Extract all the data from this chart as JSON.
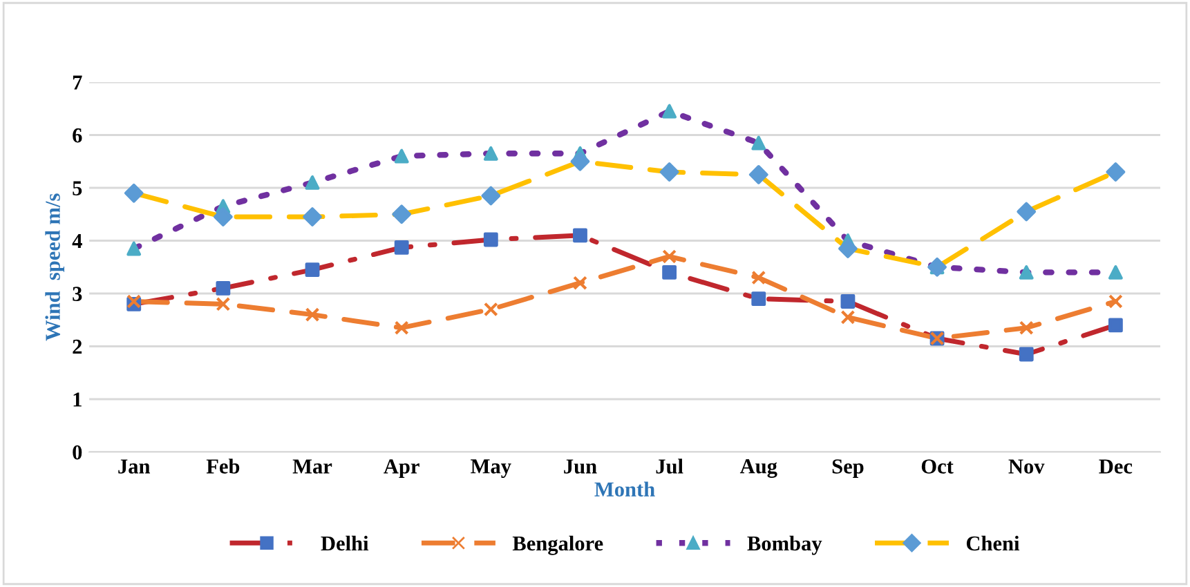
{
  "chart_data": {
    "type": "line",
    "xlabel": "Month",
    "ylabel": "Wind  speed m/s",
    "categories": [
      "Jan",
      "Feb",
      "Mar",
      "Apr",
      "May",
      "Jun",
      "Jul",
      "Aug",
      "Sep",
      "Oct",
      "Nov",
      "Dec"
    ],
    "ylim": [
      0,
      7
    ],
    "yticks": [
      0,
      1,
      2,
      3,
      4,
      5,
      6,
      7
    ],
    "grid": "y",
    "legend": "bottom",
    "series": [
      {
        "name": "Delhi",
        "color": "#c0272d",
        "marker": "square",
        "colors": [
          "#4472c4",
          "#4472c4",
          "#4472c4",
          "#4472c4",
          "#4472c4",
          "#4472c4",
          "#4472c4",
          "#4472c4",
          "#4472c4",
          "#4472c4",
          "#4472c4",
          "#4472c4"
        ],
        "line_style": "dashdot",
        "values": [
          2.8,
          3.1,
          3.45,
          3.87,
          4.02,
          4.1,
          3.4,
          2.9,
          2.85,
          2.15,
          1.85,
          2.4
        ]
      },
      {
        "name": "Bengalore",
        "color": "#ed7d31",
        "marker": "cross",
        "line_style": "dashed",
        "values": [
          2.85,
          2.8,
          2.6,
          2.35,
          2.7,
          3.2,
          3.7,
          3.3,
          2.55,
          2.15,
          2.35,
          2.85
        ]
      },
      {
        "name": "Bombay",
        "color": "#7030a0",
        "marker": "triangle",
        "colors": [
          "#4bacc6",
          "#4bacc6",
          "#4bacc6",
          "#4bacc6",
          "#4bacc6",
          "#4bacc6",
          "#4bacc6",
          "#4bacc6",
          "#4bacc6",
          "#4bacc6",
          "#4bacc6",
          "#4bacc6"
        ],
        "line_style": "dotted",
        "values": [
          3.85,
          4.65,
          5.1,
          5.6,
          5.65,
          5.65,
          6.45,
          5.85,
          4.0,
          3.5,
          3.4,
          3.4
        ]
      },
      {
        "name": "Cheni",
        "color": "#ffc000",
        "marker": "diamond",
        "colors": [
          "#5b9bd5",
          "#5b9bd5",
          "#5b9bd5",
          "#5b9bd5",
          "#5b9bd5",
          "#5b9bd5",
          "#5b9bd5",
          "#5b9bd5",
          "#5b9bd5",
          "#5b9bd5",
          "#5b9bd5",
          "#5b9bd5"
        ],
        "line_style": "dashed",
        "values": [
          4.9,
          4.45,
          4.45,
          4.5,
          4.85,
          5.5,
          5.3,
          5.25,
          3.85,
          3.5,
          4.55,
          5.3
        ]
      }
    ]
  }
}
